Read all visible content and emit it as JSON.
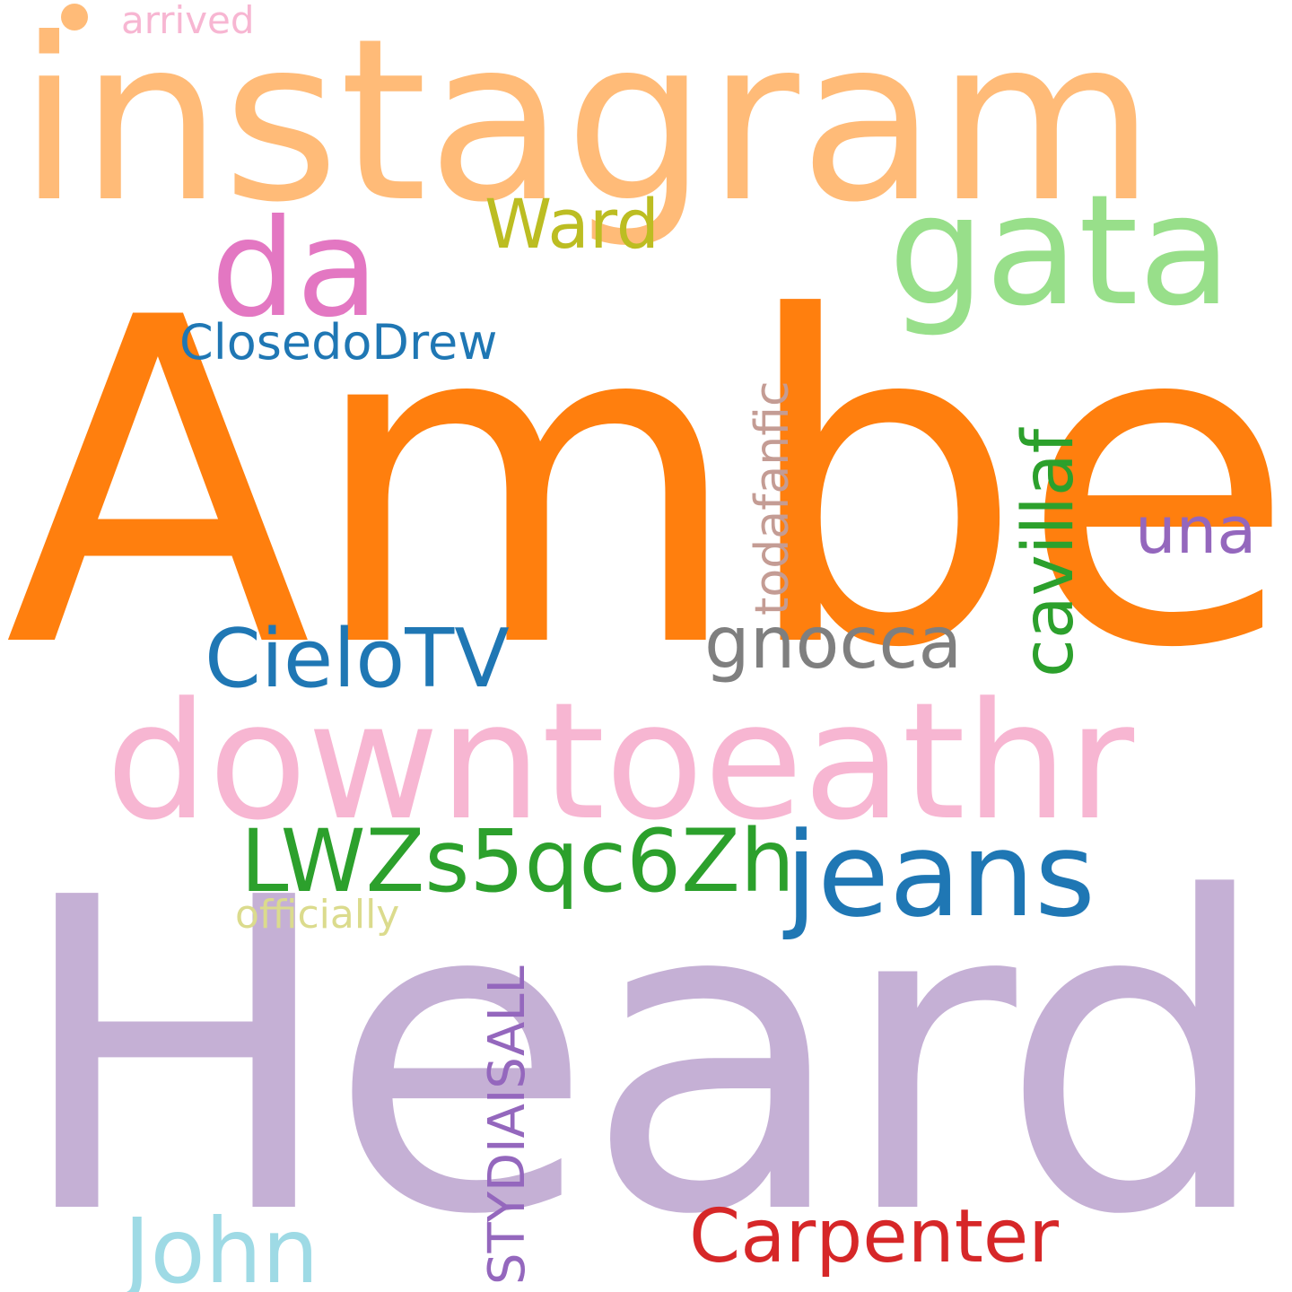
{
  "wordcloud": {
    "background": "#ffffff",
    "words": {
      "instagram": {
        "text": "instagram",
        "color": "#ffbb78"
      },
      "amber": {
        "text": "Amber",
        "color": "#ff7f0e"
      },
      "heard": {
        "text": "Heard",
        "color": "#c5b0d5"
      },
      "downtoeathr": {
        "text": "downtoeathr",
        "color": "#f7b6d2"
      },
      "gata": {
        "text": "gata",
        "color": "#98df8a"
      },
      "da": {
        "text": "da",
        "color": "#e377c2"
      },
      "ward": {
        "text": "Ward",
        "color": "#bcbd22"
      },
      "closedodrew": {
        "text": "ClosedoDrew",
        "color": "#1f77b4"
      },
      "una": {
        "text": "una",
        "color": "#9467bd"
      },
      "gnocca": {
        "text": "gnocca",
        "color": "#7f7f7f"
      },
      "cielotv": {
        "text": "CieloTV",
        "color": "#1f77b4"
      },
      "lwzs": {
        "text": "LWZs5qc6Zh",
        "color": "#2ca02c"
      },
      "jeans": {
        "text": "jeans",
        "color": "#1f77b4"
      },
      "officially": {
        "text": "officially",
        "color": "#dbdb8d"
      },
      "arrived": {
        "text": "arrived",
        "color": "#f7b6d2"
      },
      "dot": {
        "text": "",
        "color": "#ffbb78"
      },
      "john": {
        "text": "John",
        "color": "#9edae5"
      },
      "carpenter": {
        "text": "Carpenter",
        "color": "#d62728"
      },
      "todafanfic": {
        "text": "todafanfic",
        "color": "#c49c94"
      },
      "cavillaf": {
        "text": "cavillaf",
        "color": "#2ca02c"
      },
      "stydiaisall": {
        "text": "STYDIAISALL",
        "color": "#9467bd"
      }
    }
  }
}
